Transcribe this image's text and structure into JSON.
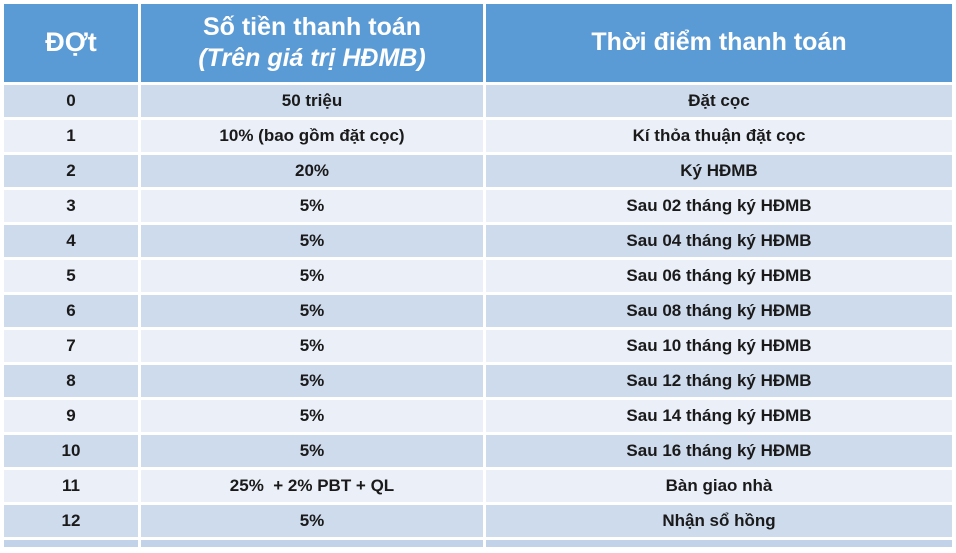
{
  "colors": {
    "header_bg": "#5B9BD5",
    "header_text": "#FFFFFF",
    "band_dark": "#CEDBEC",
    "band_light": "#EAEFF8",
    "bottom_strip": "#C2D2E8",
    "body_text": "#1A1A1A"
  },
  "table": {
    "headers": {
      "dot": "ĐỢt",
      "amount_line1": "Số tiền thanh toán",
      "amount_line2": "(Trên giá trị HĐMB)",
      "time": "Thời điểm thanh toán"
    },
    "rows": [
      {
        "dot": "0",
        "amount": "50 triệu",
        "time": "Đặt cọc"
      },
      {
        "dot": "1",
        "amount": "10% (bao gồm đặt cọc)",
        "time": "Kí thỏa thuận đặt cọc"
      },
      {
        "dot": "2",
        "amount": "20%",
        "time": "Ký HĐMB"
      },
      {
        "dot": "3",
        "amount": "5%",
        "time": "Sau 02 tháng ký HĐMB"
      },
      {
        "dot": "4",
        "amount": "5%",
        "time": "Sau 04 tháng ký HĐMB"
      },
      {
        "dot": "5",
        "amount": "5%",
        "time": "Sau 06 tháng ký HĐMB"
      },
      {
        "dot": "6",
        "amount": "5%",
        "time": "Sau 08 tháng ký HĐMB"
      },
      {
        "dot": "7",
        "amount": "5%",
        "time": "Sau 10 tháng ký HĐMB"
      },
      {
        "dot": "8",
        "amount": "5%",
        "time": "Sau 12 tháng ký HĐMB"
      },
      {
        "dot": "9",
        "amount": "5%",
        "time": "Sau 14 tháng ký HĐMB"
      },
      {
        "dot": "10",
        "amount": "5%",
        "time": "Sau 16 tháng ký HĐMB"
      },
      {
        "dot": "11",
        "amount": "25%  + 2% PBT + QL",
        "time": "Bàn giao nhà"
      },
      {
        "dot": "12",
        "amount": "5%",
        "time": "Nhận sổ hồng"
      }
    ]
  }
}
